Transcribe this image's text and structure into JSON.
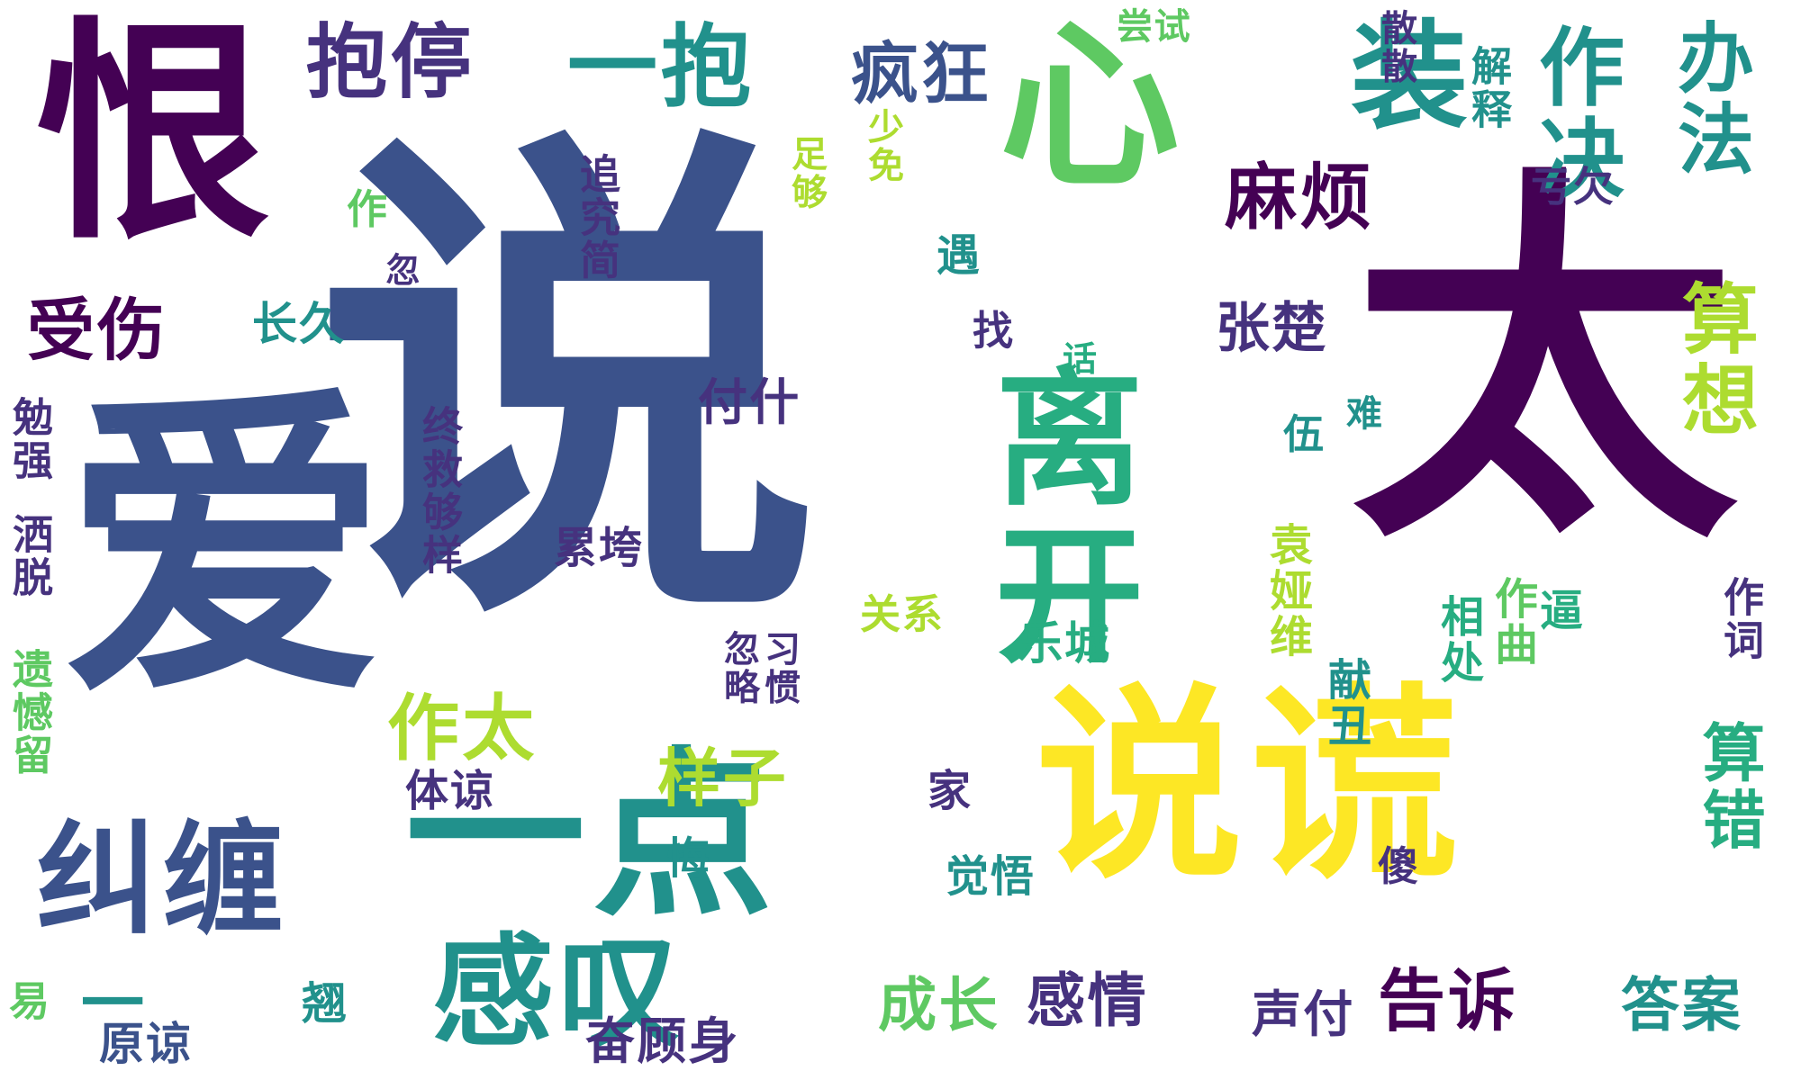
{
  "palette": {
    "background": "#ffffff",
    "dark_purple": "#440154",
    "indigo": "#3b528b",
    "blue": "#2c728e",
    "teal": "#21918c",
    "green": "#27ad81",
    "light_green": "#5ec962",
    "lime": "#addc30",
    "yellow": "#fde725"
  },
  "words": [
    {
      "text": "说",
      "color": "#3b528b"
    },
    {
      "text": "太",
      "color": "#440154"
    },
    {
      "text": "爱",
      "color": "#3b528b"
    },
    {
      "text": "说谎",
      "color": "#fde725"
    },
    {
      "text": "恨",
      "color": "#440154"
    },
    {
      "text": "一点",
      "color": "#21918c"
    },
    {
      "text": "心",
      "color": "#5ec962"
    },
    {
      "text": "装",
      "color": "#21918c"
    },
    {
      "text": "离开",
      "color": "#27ad81"
    },
    {
      "text": "纠缠",
      "color": "#3b528b"
    },
    {
      "text": "感叹",
      "color": "#21918c"
    },
    {
      "text": "一抱",
      "color": "#21918c"
    },
    {
      "text": "抱停",
      "color": "#46327e"
    },
    {
      "text": "疯狂",
      "color": "#3b528b"
    },
    {
      "text": "作决",
      "color": "#21918c"
    },
    {
      "text": "麻烦",
      "color": "#440154"
    },
    {
      "text": "办法",
      "color": "#21918c"
    },
    {
      "text": "算想",
      "color": "#addc30"
    },
    {
      "text": "作太",
      "color": "#addc30"
    },
    {
      "text": "受伤",
      "color": "#440154"
    },
    {
      "text": "长久",
      "color": "#21918c"
    },
    {
      "text": "付什",
      "color": "#46327e"
    },
    {
      "text": "张楚",
      "color": "#46327e"
    },
    {
      "text": "样子",
      "color": "#addc30"
    },
    {
      "text": "成长",
      "color": "#5ec962"
    },
    {
      "text": "感情",
      "color": "#46327e"
    },
    {
      "text": "告诉",
      "color": "#440154"
    },
    {
      "text": "答案",
      "color": "#21918c"
    },
    {
      "text": "算错",
      "color": "#27ad81"
    },
    {
      "text": "声付",
      "color": "#46327e"
    },
    {
      "text": "原谅",
      "color": "#3b528b"
    },
    {
      "text": "奋顾身",
      "color": "#46327e"
    },
    {
      "text": "翘",
      "color": "#21918c"
    },
    {
      "text": "易",
      "color": "#5ec962"
    },
    {
      "text": "一",
      "color": "#21918c"
    },
    {
      "text": "觉悟",
      "color": "#21918c"
    },
    {
      "text": "家",
      "color": "#46327e"
    },
    {
      "text": "体谅",
      "color": "#46327e"
    },
    {
      "text": "悔",
      "color": "#21918c"
    },
    {
      "text": "乐城",
      "color": "#27ad81"
    },
    {
      "text": "关系",
      "color": "#addc30"
    },
    {
      "text": "累垮",
      "color": "#46327e"
    },
    {
      "text": "找",
      "color": "#46327e"
    },
    {
      "text": "遇",
      "color": "#21918c"
    },
    {
      "text": "作",
      "color": "#5ec962"
    },
    {
      "text": "傻",
      "color": "#46327e"
    },
    {
      "text": "相处",
      "color": "#27ad81"
    },
    {
      "text": "作曲",
      "color": "#5ec962"
    },
    {
      "text": "逼",
      "color": "#27ad81"
    },
    {
      "text": "作词",
      "color": "#46327e"
    },
    {
      "text": "亏欠",
      "color": "#46327e"
    },
    {
      "text": "尝试",
      "color": "#5ec962"
    },
    {
      "text": "解释",
      "color": "#21918c"
    },
    {
      "text": "散散",
      "color": "#46327e"
    },
    {
      "text": "少免",
      "color": "#addc30"
    },
    {
      "text": "足够",
      "color": "#addc30"
    },
    {
      "text": "追究简",
      "color": "#46327e"
    },
    {
      "text": "勉强",
      "color": "#46327e"
    },
    {
      "text": "洒脱",
      "color": "#46327e"
    },
    {
      "text": "遗憾留",
      "color": "#5ec962"
    },
    {
      "text": "终救够样",
      "color": "#46327e"
    },
    {
      "text": "忽",
      "color": "#46327e"
    },
    {
      "text": "习惯",
      "color": "#46327e"
    },
    {
      "text": "话",
      "color": "#27ad81"
    },
    {
      "text": "难",
      "color": "#21918c"
    },
    {
      "text": "伍",
      "color": "#21918c"
    },
    {
      "text": "袁娅维",
      "color": "#addc30"
    },
    {
      "text": "献丑",
      "color": "#21918c"
    },
    {
      "text": "忽略",
      "color": "#46327e"
    }
  ]
}
